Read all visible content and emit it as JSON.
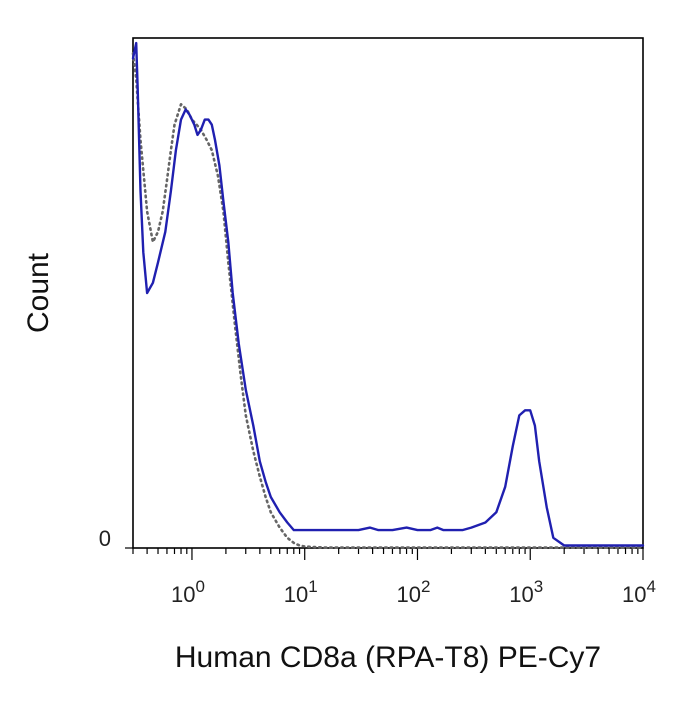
{
  "chart_data": {
    "type": "line",
    "title": "",
    "xlabel": "Human CD8a (RPA-T8) PE-Cy7",
    "ylabel": "Count",
    "x_scale": "log",
    "xlim": [
      0.3,
      10000
    ],
    "ylim": [
      0,
      100
    ],
    "grid": false,
    "x_ticks": [
      {
        "value": 1,
        "base": "10",
        "exp": "0"
      },
      {
        "value": 10,
        "base": "10",
        "exp": "1"
      },
      {
        "value": 100,
        "base": "10",
        "exp": "2"
      },
      {
        "value": 1000,
        "base": "10",
        "exp": "3"
      },
      {
        "value": 10000,
        "base": "10",
        "exp": "4"
      }
    ],
    "y_ticks": [
      {
        "value": 0,
        "label": "0"
      }
    ],
    "series": [
      {
        "color": "#2020b0",
        "style": "solid",
        "x": [
          0.3,
          0.32,
          0.33,
          0.35,
          0.37,
          0.4,
          0.45,
          0.5,
          0.58,
          0.65,
          0.72,
          0.8,
          0.88,
          0.95,
          1.05,
          1.12,
          1.2,
          1.3,
          1.4,
          1.5,
          1.6,
          1.75,
          1.9,
          2.1,
          2.3,
          2.6,
          3.0,
          3.5,
          4.0,
          4.5,
          5.0,
          6.0,
          7.0,
          8.0,
          9.0,
          10,
          12,
          15,
          20,
          30,
          38,
          45,
          60,
          80,
          100,
          130,
          150,
          170,
          200,
          250,
          300,
          400,
          500,
          600,
          700,
          800,
          900,
          1000,
          1100,
          1200,
          1400,
          1600,
          2000,
          3000,
          5000,
          10000
        ],
        "y": [
          96,
          99,
          90,
          70,
          58,
          50,
          52,
          56,
          62,
          70,
          78,
          84,
          86,
          85,
          83,
          81,
          82,
          84,
          84,
          83,
          80,
          75,
          68,
          60,
          50,
          40,
          31,
          24,
          17,
          13,
          10,
          7,
          5,
          3.5,
          3.5,
          3.5,
          3.5,
          3.5,
          3.5,
          3.5,
          4,
          3.5,
          3.5,
          4,
          3.5,
          3.5,
          4,
          3.5,
          3.5,
          3.5,
          4,
          5,
          7,
          12,
          20,
          26,
          27,
          27,
          24,
          17,
          8,
          2,
          0.5,
          0.5,
          0.5,
          0.5
        ]
      },
      {
        "color": "#666666",
        "style": "dotted",
        "x": [
          0.3,
          0.32,
          0.35,
          0.4,
          0.45,
          0.5,
          0.55,
          0.6,
          0.65,
          0.7,
          0.8,
          0.9,
          1.0,
          1.1,
          1.2,
          1.35,
          1.5,
          1.7,
          1.9,
          2.1,
          2.4,
          2.7,
          3.0,
          3.5,
          4.0,
          4.5,
          5.0,
          6.0,
          7.0,
          8.0,
          9.0,
          10,
          12,
          15,
          20,
          50,
          100,
          1000,
          10000
        ],
        "y": [
          97,
          92,
          80,
          66,
          60,
          62,
          66,
          72,
          78,
          83,
          87,
          86,
          84,
          83,
          82,
          80,
          78,
          73,
          66,
          56,
          44,
          34,
          26,
          19,
          14,
          10,
          7,
          4,
          2,
          1,
          0.5,
          0.3,
          0.2,
          0.1,
          0.1,
          0.1,
          0.1,
          0.1,
          0.1
        ]
      }
    ]
  }
}
